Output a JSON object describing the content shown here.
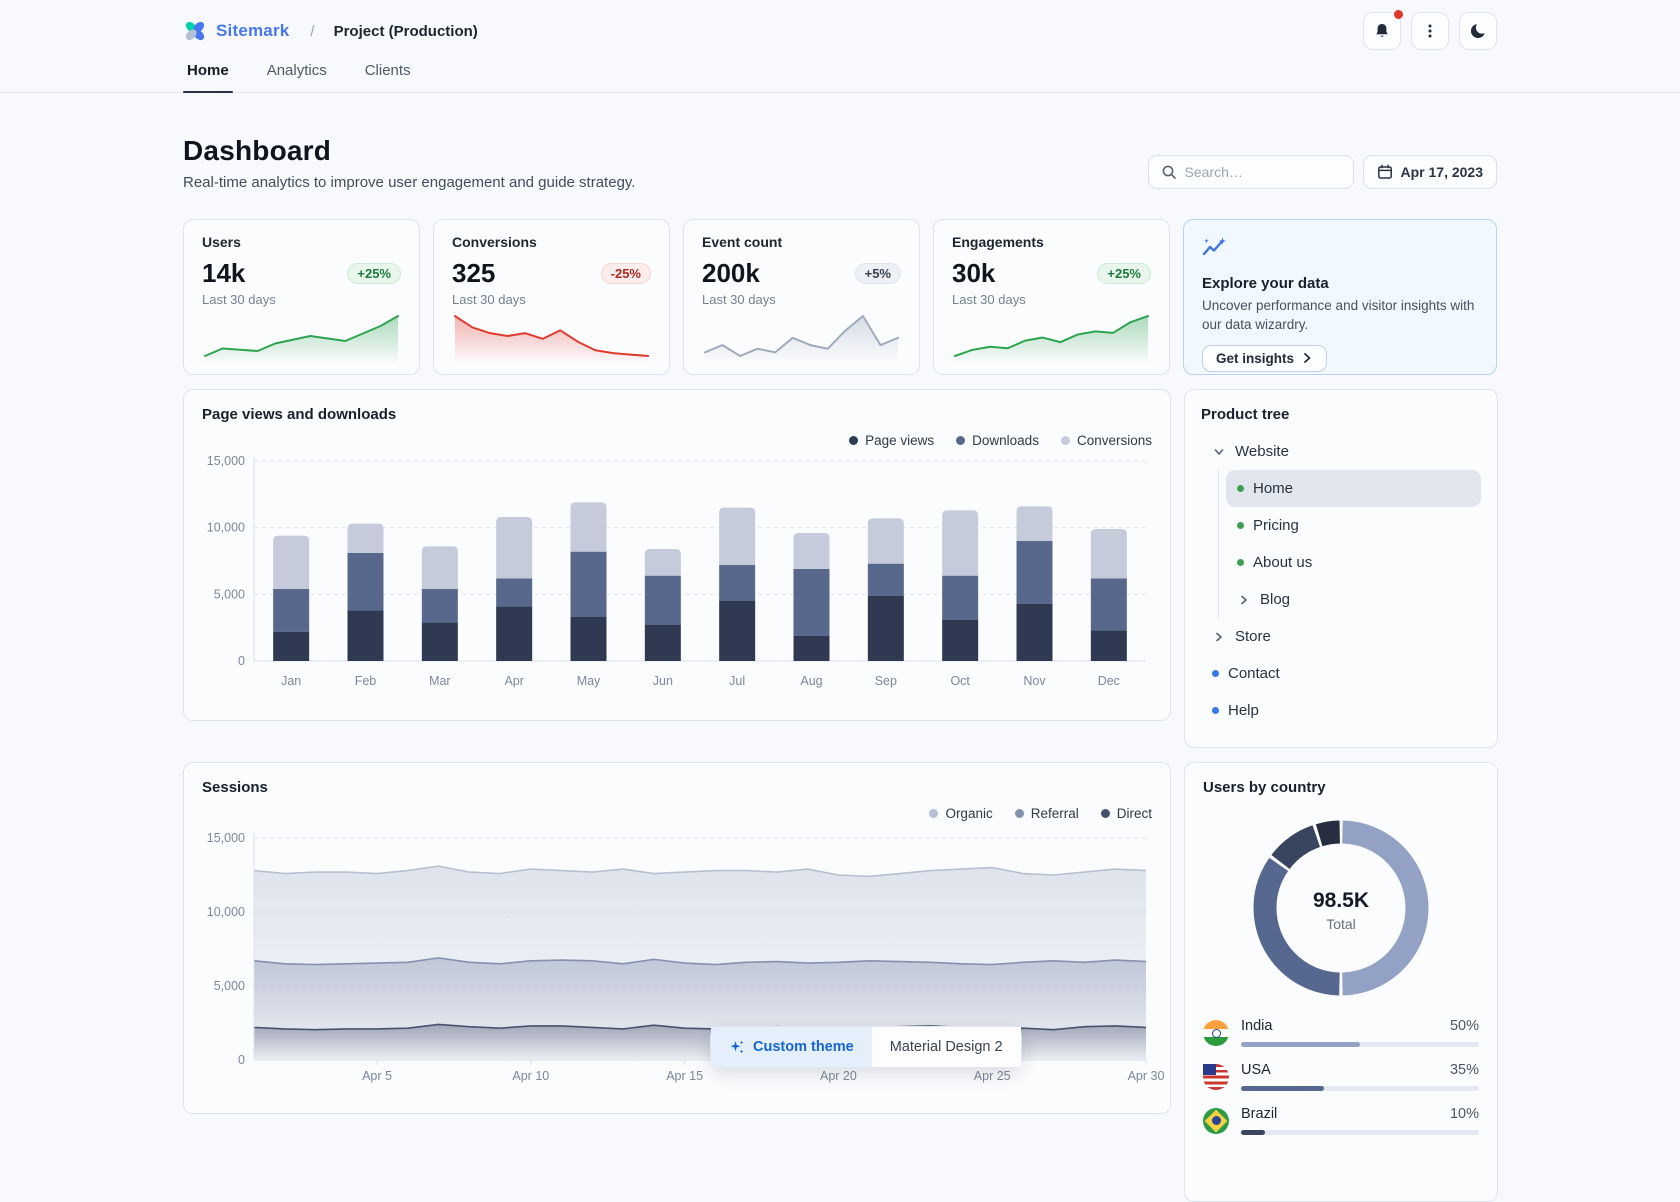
{
  "header": {
    "logo_text": "Sitemark",
    "breadcrumb": {
      "separator": "/",
      "current": "Project (Production)"
    }
  },
  "nav_tabs": [
    {
      "label": "Home",
      "active": true
    },
    {
      "label": "Analytics",
      "active": false
    },
    {
      "label": "Clients",
      "active": false
    }
  ],
  "page_header": {
    "title": "Dashboard",
    "subtitle": "Real-time analytics to improve user engagement and guide strategy.",
    "search_placeholder": "Search…",
    "date_label": "Apr 17, 2023"
  },
  "stat_cards": [
    {
      "title": "Users",
      "value": "14k",
      "chip": "+25%",
      "trend": "up",
      "caption": "Last 30 days",
      "spark": [
        20,
        26,
        25,
        24,
        30,
        33,
        36,
        34,
        32,
        38,
        44,
        52
      ]
    },
    {
      "title": "Conversions",
      "value": "325",
      "chip": "-25%",
      "trend": "down",
      "caption": "Last 30 days",
      "spark": [
        52,
        44,
        40,
        38,
        40,
        36,
        42,
        34,
        28,
        26,
        25,
        24
      ]
    },
    {
      "title": "Event count",
      "value": "200k",
      "chip": "+5%",
      "trend": "neutral",
      "caption": "Last 30 days",
      "spark": [
        28,
        30,
        27,
        29,
        28,
        32,
        30,
        29,
        34,
        38,
        30,
        32
      ]
    },
    {
      "title": "Engagements",
      "value": "30k",
      "chip": "+25%",
      "trend": "up",
      "caption": "Last 30 days",
      "spark": [
        24,
        28,
        30,
        29,
        34,
        36,
        33,
        38,
        40,
        39,
        46,
        50
      ]
    }
  ],
  "explore_card": {
    "title": "Explore your data",
    "body": "Uncover performance and visitor insights with our data wizardry.",
    "button_label": "Get insights"
  },
  "product_tree": {
    "title": "Product tree",
    "items": {
      "website": "Website",
      "home": "Home",
      "pricing": "Pricing",
      "about": "About us",
      "blog": "Blog",
      "store": "Store",
      "contact": "Contact",
      "help": "Help"
    }
  },
  "users_by_country": {
    "title": "Users by country",
    "total": "98.5K",
    "total_label": "Total",
    "countries": [
      {
        "name": "India",
        "pct_label": "50%",
        "color": "#93a2c4",
        "flag": "india-flag"
      },
      {
        "name": "USA",
        "pct_label": "35%",
        "color": "#56688f",
        "flag": "usa-flag"
      },
      {
        "name": "Brazil",
        "pct_label": "10%",
        "color": "#39455f",
        "flag": "brazil-flag"
      }
    ]
  },
  "theme_toolbar": {
    "options": [
      {
        "label": "Custom theme",
        "active": true
      },
      {
        "label": "Material Design 2",
        "active": false
      }
    ]
  },
  "chart_data": [
    {
      "type": "bar",
      "stacked": true,
      "title": "Page views and downloads",
      "categories": [
        "Jan",
        "Feb",
        "Mar",
        "Apr",
        "May",
        "Jun",
        "Jul",
        "Aug",
        "Sep",
        "Oct",
        "Nov",
        "Dec"
      ],
      "series": [
        {
          "name": "Page views",
          "color": "#2f3a52",
          "values": [
            2200,
            3800,
            2900,
            4100,
            3300,
            2700,
            4500,
            1900,
            4900,
            3100,
            4300,
            2300
          ]
        },
        {
          "name": "Downloads",
          "color": "#57688c",
          "values": [
            3200,
            4300,
            2500,
            2100,
            4900,
            3700,
            2700,
            5000,
            2400,
            3300,
            4700,
            3900
          ]
        },
        {
          "name": "Conversions",
          "color": "#c5cbda",
          "values": [
            4000,
            2200,
            3200,
            4600,
            3700,
            2000,
            4300,
            2700,
            3400,
            4900,
            2600,
            3700
          ]
        }
      ],
      "ylim": [
        0,
        15000
      ],
      "yticks": [
        0,
        5000,
        10000,
        15000
      ],
      "ytick_labels": [
        "0",
        "5,000",
        "10,000",
        "15,000"
      ],
      "grid": "dashed-horizontal",
      "legend_position": "top-right"
    },
    {
      "type": "area",
      "title": "Sessions",
      "n_points": 30,
      "x_ticks": [
        {
          "label": "Apr 5",
          "i": 4
        },
        {
          "label": "Apr 10",
          "i": 9
        },
        {
          "label": "Apr 15",
          "i": 14
        },
        {
          "label": "Apr 20",
          "i": 19
        },
        {
          "label": "Apr 25",
          "i": 24
        },
        {
          "label": "Apr 30",
          "i": 29
        }
      ],
      "series": [
        {
          "name": "Organic",
          "color": "#b7c0d3",
          "values": [
            12800,
            12600,
            12700,
            12700,
            12600,
            12800,
            13100,
            12700,
            12600,
            12900,
            12800,
            12700,
            12900,
            12600,
            12700,
            12800,
            12800,
            12700,
            12900,
            12500,
            12400,
            12600,
            12800,
            12900,
            13000,
            12600,
            12500,
            12700,
            12900,
            12800
          ]
        },
        {
          "name": "Referral",
          "color": "#8591b0",
          "values": [
            6700,
            6500,
            6450,
            6500,
            6550,
            6600,
            6900,
            6600,
            6500,
            6700,
            6750,
            6700,
            6500,
            6800,
            6550,
            6450,
            6600,
            6650,
            6550,
            6600,
            6700,
            6650,
            6600,
            6500,
            6450,
            6600,
            6700,
            6600,
            6750,
            6650
          ]
        },
        {
          "name": "Direct",
          "color": "#47536e",
          "values": [
            2200,
            2100,
            2050,
            2100,
            2100,
            2150,
            2400,
            2250,
            2150,
            2300,
            2300,
            2200,
            2100,
            2350,
            2150,
            2100,
            2200,
            2250,
            2200,
            2150,
            2200,
            2250,
            2300,
            2200,
            2100,
            2150,
            2050,
            2250,
            2300,
            2200
          ]
        }
      ],
      "ylim": [
        0,
        15000
      ],
      "yticks": [
        0,
        5000,
        10000,
        15000
      ],
      "ytick_labels": [
        "0",
        "5,000",
        "10,000",
        "15,000"
      ],
      "grid": "dashed-horizontal",
      "legend_position": "top-right"
    },
    {
      "type": "pie",
      "donut": true,
      "center_total": "98.5K",
      "segments": [
        {
          "label": "India",
          "pct": 50,
          "color": "#93a2c4"
        },
        {
          "label": "USA",
          "pct": 35,
          "color": "#56688f"
        },
        {
          "label": "Brazil",
          "pct": 10,
          "color": "#39455f"
        },
        {
          "label": "",
          "pct": 5,
          "color": "#262e40"
        }
      ]
    }
  ]
}
